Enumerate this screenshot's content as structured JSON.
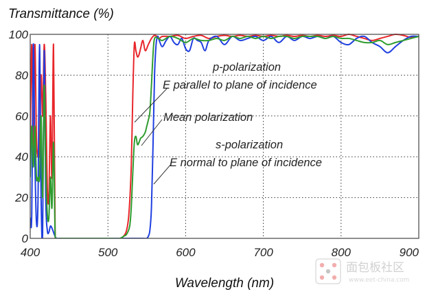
{
  "chart_data": {
    "type": "line",
    "title": "Transmittance (%)",
    "xlabel": "Wavelength (nm)",
    "ylabel": "",
    "xlim": [
      400,
      900
    ],
    "ylim": [
      0,
      100
    ],
    "x_ticks": [
      "400",
      "500",
      "600",
      "700",
      "800",
      "900"
    ],
    "y_ticks": [
      "0",
      "20",
      "40",
      "60",
      "80",
      "100"
    ],
    "grid": true,
    "annotations": [
      "p-polarization",
      "E parallel to plane of incidence",
      "Mean polarization",
      "s-polarization",
      "E normal to plane of incidence"
    ],
    "series": [
      {
        "color": "#e8262b",
        "x": [
          400,
          402,
          404,
          406,
          408,
          410,
          412,
          414,
          416,
          418,
          420,
          422,
          424,
          426,
          428,
          430,
          432,
          434,
          440,
          460,
          480,
          500,
          515,
          520,
          524,
          527,
          530,
          532,
          534,
          536,
          538,
          540,
          542,
          545,
          548,
          552,
          556,
          560,
          563,
          566,
          570,
          580,
          590,
          600,
          610,
          620,
          630,
          640,
          650,
          660,
          670,
          680,
          690,
          700,
          710,
          720,
          730,
          740,
          750,
          760,
          770,
          780,
          790,
          800,
          810,
          820,
          830,
          840,
          850,
          860,
          870,
          880,
          890,
          900
        ],
        "y": [
          48,
          95,
          40,
          95,
          50,
          40,
          45,
          80,
          60,
          95,
          70,
          25,
          20,
          60,
          30,
          95,
          5,
          0,
          0,
          0,
          0,
          0,
          0,
          1,
          4,
          12,
          35,
          70,
          95,
          92,
          89,
          90,
          93,
          97,
          92,
          95,
          98,
          99.5,
          99,
          98,
          99,
          99,
          99.5,
          98,
          99,
          99.5,
          98,
          99,
          99.5,
          99,
          99.5,
          99,
          99.5,
          99,
          99.5,
          99,
          99.5,
          99,
          99.5,
          99,
          99.5,
          99,
          99.5,
          99,
          100,
          99,
          98,
          97,
          98,
          99,
          100,
          99.5,
          98.5,
          99
        ]
      },
      {
        "color": "#1f3fe0",
        "x": [
          400,
          402,
          404,
          406,
          408,
          410,
          412,
          414,
          416,
          418,
          420,
          422,
          424,
          426,
          428,
          430,
          432,
          434,
          440,
          460,
          480,
          500,
          520,
          540,
          546,
          550,
          552,
          554,
          556,
          558,
          560,
          562,
          564,
          566,
          570,
          575,
          580,
          585,
          590,
          595,
          600,
          605,
          610,
          615,
          620,
          625,
          630,
          640,
          650,
          660,
          670,
          680,
          690,
          700,
          710,
          720,
          730,
          740,
          750,
          760,
          770,
          780,
          790,
          800,
          810,
          820,
          830,
          840,
          850,
          860,
          870,
          880,
          890,
          900
        ],
        "y": [
          10,
          12,
          95,
          40,
          8,
          18,
          95,
          20,
          3,
          92,
          20,
          4,
          3,
          6,
          5,
          3,
          1,
          0,
          0,
          0,
          0,
          0,
          0,
          0,
          0,
          0,
          1,
          4,
          15,
          45,
          80,
          95,
          99,
          97,
          94,
          97,
          99,
          96,
          95,
          98,
          93,
          92,
          98,
          97,
          96,
          92,
          97,
          99,
          95,
          99,
          97,
          98,
          99,
          97,
          99,
          96,
          99,
          97,
          99,
          98,
          99,
          98,
          99,
          96,
          95,
          98,
          99,
          96,
          94,
          91,
          94,
          97,
          99,
          99
        ]
      },
      {
        "color": "#2e9c2e",
        "x": [
          400,
          402,
          404,
          406,
          408,
          410,
          412,
          414,
          416,
          418,
          420,
          422,
          424,
          426,
          428,
          430,
          432,
          434,
          440,
          460,
          480,
          500,
          515,
          520,
          524,
          528,
          530,
          532,
          534,
          536,
          538,
          540,
          542,
          545,
          548,
          550,
          552,
          554,
          556,
          558,
          560,
          565,
          570,
          580,
          590,
          600,
          610,
          620,
          630,
          640,
          650,
          660,
          670,
          680,
          690,
          700,
          710,
          720,
          730,
          740,
          750,
          760,
          770,
          780,
          790,
          800,
          810,
          820,
          830,
          840,
          850,
          860,
          870,
          880,
          890,
          900
        ],
        "y": [
          30,
          55,
          35,
          55,
          30,
          30,
          30,
          60,
          20,
          75,
          35,
          12,
          10,
          30,
          15,
          47,
          3,
          0,
          0,
          0,
          0,
          0,
          0,
          1,
          2,
          6,
          15,
          32,
          47,
          50,
          46,
          47,
          49,
          50,
          52,
          55,
          58,
          62,
          75,
          90,
          98,
          98,
          97,
          99,
          98,
          96,
          98,
          97,
          97,
          98,
          97,
          99,
          98,
          99,
          98,
          99,
          98,
          99,
          99,
          98,
          99,
          99,
          99,
          98,
          99,
          98,
          98,
          97,
          96,
          96,
          97,
          95,
          96,
          97,
          98,
          99
        ]
      }
    ]
  },
  "watermark": {
    "text": "面包板社区",
    "sub": "www.eet-china.com"
  }
}
